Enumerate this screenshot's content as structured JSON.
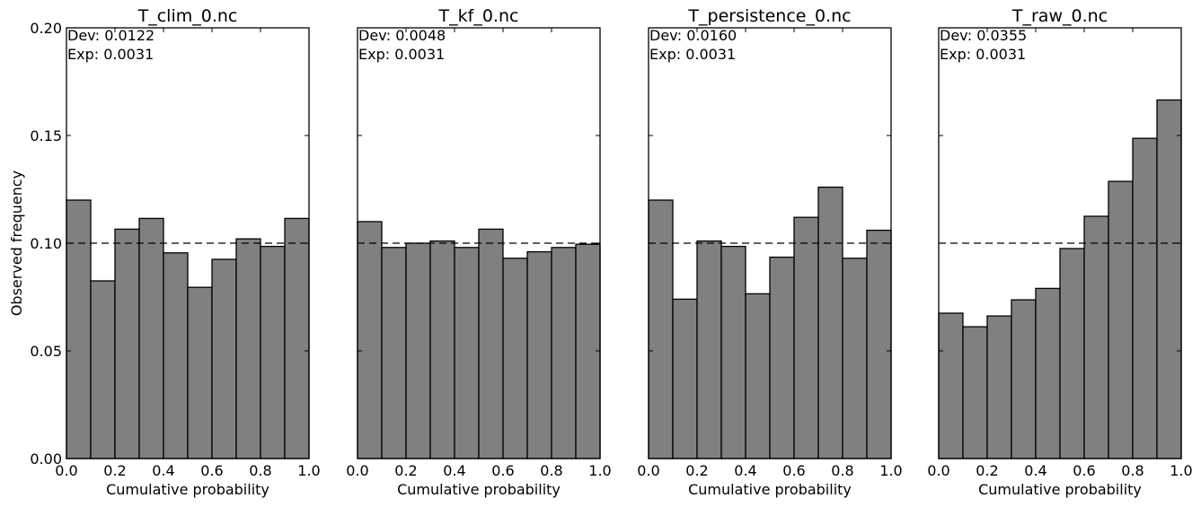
{
  "chart_data": [
    {
      "type": "histogram",
      "title": "T_clim_0.nc",
      "xlabel": "Cumulative probability",
      "ylabel": "Observed frequency",
      "annotations": [
        "Dev: 0.0122",
        "Exp: 0.0031"
      ],
      "color": "#808080",
      "reference_line": 0.1,
      "bins": [
        0,
        0.1,
        0.2,
        0.3,
        0.4,
        0.5,
        0.6,
        0.7,
        0.8,
        0.9,
        1.0
      ],
      "values": [
        0.12,
        0.0825,
        0.1065,
        0.1115,
        0.0955,
        0.0795,
        0.0925,
        0.102,
        0.0985,
        0.1115
      ],
      "xlim": [
        0,
        1
      ],
      "ylim": [
        0,
        0.2
      ],
      "xticks": [
        {
          "value": 0,
          "label": "0.0"
        },
        {
          "value": 0.2,
          "label": "0.2"
        },
        {
          "value": 0.4,
          "label": "0.4"
        },
        {
          "value": 0.6,
          "label": "0.6"
        },
        {
          "value": 0.8,
          "label": "0.8"
        },
        {
          "value": 1,
          "label": "1.0"
        }
      ],
      "yticks": [
        {
          "value": 0,
          "label": "0.00"
        },
        {
          "value": 0.05,
          "label": "0.05"
        },
        {
          "value": 0.1,
          "label": "0.10"
        },
        {
          "value": 0.15,
          "label": "0.15"
        },
        {
          "value": 0.2,
          "label": "0.20"
        }
      ]
    },
    {
      "type": "histogram",
      "title": "T_kf_0.nc",
      "xlabel": "Cumulative probability",
      "annotations": [
        "Dev: 0.0048",
        "Exp: 0.0031"
      ],
      "color": "#808080",
      "reference_line": 0.1,
      "bins": [
        0,
        0.1,
        0.2,
        0.3,
        0.4,
        0.5,
        0.6,
        0.7,
        0.8,
        0.9,
        1.0
      ],
      "values": [
        0.11,
        0.098,
        0.1,
        0.101,
        0.098,
        0.1065,
        0.093,
        0.096,
        0.098,
        0.0995
      ],
      "xlim": [
        0,
        1
      ],
      "ylim": [
        0,
        0.2
      ],
      "xticks": [
        {
          "value": 0,
          "label": "0.0"
        },
        {
          "value": 0.2,
          "label": "0.2"
        },
        {
          "value": 0.4,
          "label": "0.4"
        },
        {
          "value": 0.6,
          "label": "0.6"
        },
        {
          "value": 0.8,
          "label": "0.8"
        },
        {
          "value": 1,
          "label": "1.0"
        }
      ],
      "yticks": [
        0,
        0.05,
        0.1,
        0.15,
        0.2
      ]
    },
    {
      "type": "histogram",
      "title": "T_persistence_0.nc",
      "xlabel": "Cumulative probability",
      "annotations": [
        "Dev: 0.0160",
        "Exp: 0.0031"
      ],
      "color": "#808080",
      "reference_line": 0.1,
      "bins": [
        0,
        0.1,
        0.2,
        0.3,
        0.4,
        0.5,
        0.6,
        0.7,
        0.8,
        0.9,
        1.0
      ],
      "values": [
        0.12,
        0.074,
        0.101,
        0.0985,
        0.0765,
        0.0935,
        0.112,
        0.126,
        0.093,
        0.106
      ],
      "xlim": [
        0,
        1
      ],
      "ylim": [
        0,
        0.2
      ],
      "xticks": [
        {
          "value": 0,
          "label": "0.0"
        },
        {
          "value": 0.2,
          "label": "0.2"
        },
        {
          "value": 0.4,
          "label": "0.4"
        },
        {
          "value": 0.6,
          "label": "0.6"
        },
        {
          "value": 0.8,
          "label": "0.8"
        },
        {
          "value": 1,
          "label": "1.0"
        }
      ],
      "yticks": [
        0,
        0.05,
        0.1,
        0.15,
        0.2
      ]
    },
    {
      "type": "histogram",
      "title": "T_raw_0.nc",
      "xlabel": "Cumulative probability",
      "annotations": [
        "Dev: 0.0355",
        "Exp: 0.0031"
      ],
      "color": "#808080",
      "reference_line": 0.1,
      "bins": [
        0,
        0.1,
        0.2,
        0.3,
        0.4,
        0.5,
        0.6,
        0.7,
        0.8,
        0.9,
        1.0
      ],
      "values": [
        0.0675,
        0.0612,
        0.0662,
        0.0737,
        0.079,
        0.0975,
        0.1125,
        0.1287,
        0.1487,
        0.1665
      ],
      "xlim": [
        0,
        1
      ],
      "ylim": [
        0,
        0.2
      ],
      "xticks": [
        {
          "value": 0,
          "label": "0.0"
        },
        {
          "value": 0.2,
          "label": "0.2"
        },
        {
          "value": 0.4,
          "label": "0.4"
        },
        {
          "value": 0.6,
          "label": "0.6"
        },
        {
          "value": 0.8,
          "label": "0.8"
        },
        {
          "value": 1,
          "label": "1.0"
        }
      ],
      "yticks": [
        0,
        0.05,
        0.1,
        0.15,
        0.2
      ]
    }
  ]
}
